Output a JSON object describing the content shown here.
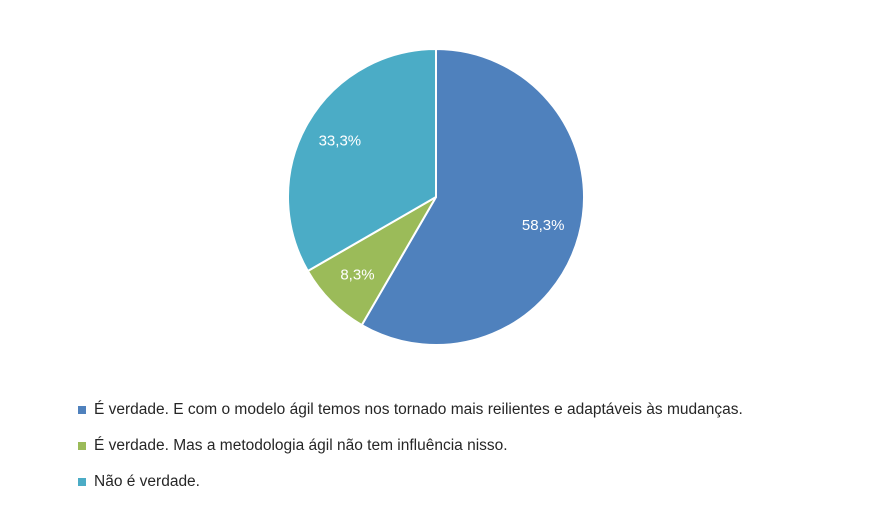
{
  "chart_data": {
    "type": "pie",
    "title": "",
    "start_angle_deg": 0,
    "direction": "clockwise",
    "slices": [
      {
        "label": "É verdade. E com o modelo ágil temos nos tornado mais reilientes e adaptáveis às mudanças.",
        "value": 58.3,
        "data_label": "58,3%",
        "color": "#4F81BD"
      },
      {
        "label": "É verdade. Mas a metodologia ágil não tem influência nisso.",
        "value": 8.3,
        "data_label": "8,3%",
        "color": "#9BBB59"
      },
      {
        "label": "Não é verdade.",
        "value": 33.3,
        "data_label": "33,3%",
        "color": "#4BACC6"
      }
    ],
    "legend_position": "bottom-left"
  }
}
